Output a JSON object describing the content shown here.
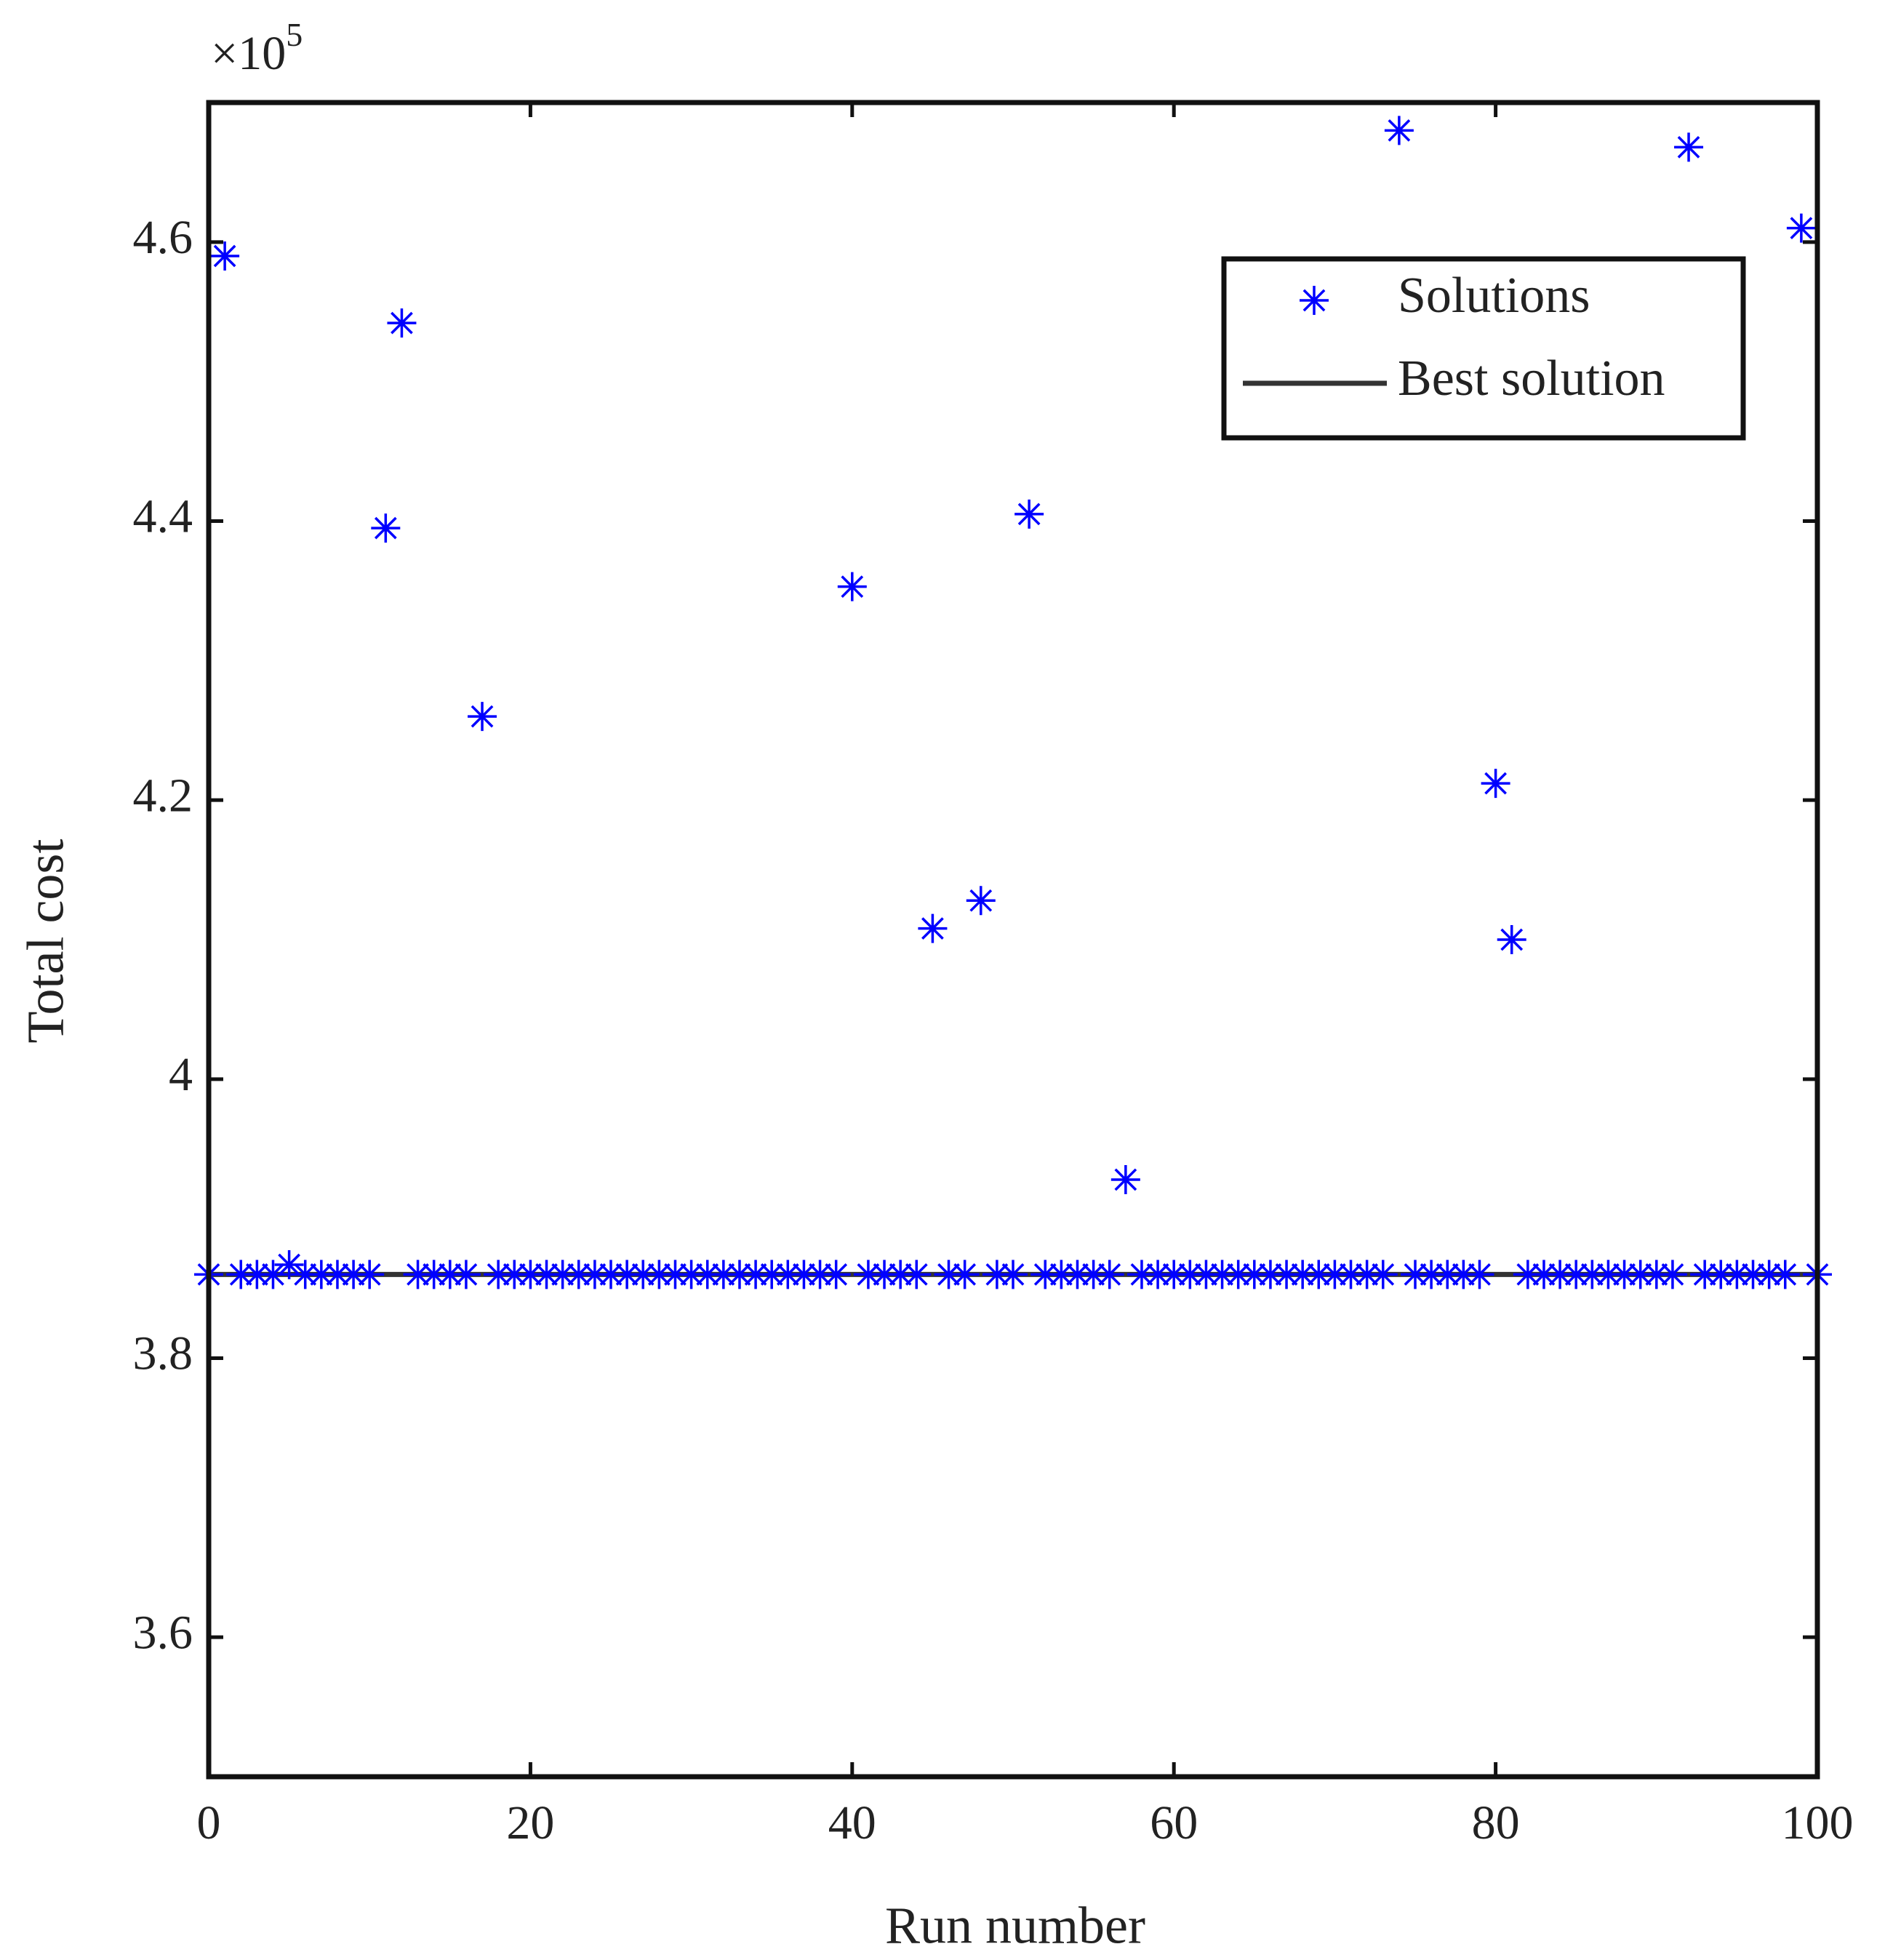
{
  "chart_data": {
    "type": "scatter",
    "x_label": "Run number",
    "y_label": "Total cost",
    "y_multiplier": {
      "base": "×10",
      "exponent": "5"
    },
    "xlim": [
      0,
      100
    ],
    "xticks": [
      0,
      20,
      40,
      60,
      80,
      100
    ],
    "ylim": [
      3.5,
      4.7
    ],
    "yticks": [
      3.6,
      3.8,
      4,
      4.2,
      4.4,
      4.6
    ],
    "grid": false,
    "legend": "upper right",
    "series": [
      {
        "name": "Solutions",
        "color": "#0000ff",
        "x": [
          0,
          1,
          2,
          3,
          4,
          5,
          6,
          7,
          8,
          9,
          10,
          11,
          12,
          13,
          14,
          15,
          16,
          17,
          18,
          19,
          20,
          21,
          22,
          23,
          24,
          25,
          26,
          27,
          28,
          29,
          30,
          31,
          32,
          33,
          34,
          35,
          36,
          37,
          38,
          39,
          40,
          41,
          42,
          43,
          44,
          45,
          46,
          47,
          48,
          49,
          50,
          51,
          52,
          53,
          54,
          55,
          56,
          57,
          58,
          59,
          60,
          61,
          62,
          63,
          64,
          65,
          66,
          67,
          68,
          69,
          70,
          71,
          72,
          73,
          74,
          75,
          76,
          77,
          78,
          79,
          80,
          81,
          82,
          83,
          84,
          85,
          86,
          87,
          88,
          89,
          90,
          91,
          92,
          93,
          94,
          95,
          96,
          97,
          98,
          99,
          100
        ],
        "values": [
          3.86,
          4.59,
          3.86,
          3.86,
          3.86,
          3.867,
          3.86,
          3.86,
          3.86,
          3.86,
          3.86,
          4.395,
          4.542,
          3.86,
          3.86,
          3.86,
          3.86,
          4.26,
          3.86,
          3.86,
          3.86,
          3.86,
          3.86,
          3.86,
          3.86,
          3.86,
          3.86,
          3.86,
          3.86,
          3.86,
          3.86,
          3.86,
          3.86,
          3.86,
          3.86,
          3.86,
          3.86,
          3.86,
          3.86,
          3.86,
          4.353,
          3.86,
          3.86,
          3.86,
          3.86,
          4.108,
          3.86,
          3.86,
          4.128,
          3.86,
          3.86,
          4.405,
          3.86,
          3.86,
          3.86,
          3.86,
          3.86,
          3.928,
          3.86,
          3.86,
          3.86,
          3.86,
          3.86,
          3.86,
          3.86,
          3.86,
          3.86,
          3.86,
          3.86,
          3.86,
          3.86,
          3.86,
          3.86,
          3.86,
          4.68,
          3.86,
          3.86,
          3.86,
          3.86,
          3.86,
          4.212,
          4.1,
          3.86,
          3.86,
          3.86,
          3.86,
          3.86,
          3.86,
          3.86,
          3.86,
          3.86,
          3.86,
          4.668,
          3.86,
          3.86,
          3.86,
          3.86,
          3.86,
          3.86,
          4.61,
          3.86
        ]
      },
      {
        "name": "Best solution",
        "color": "#333333",
        "line_value": 3.86
      }
    ]
  }
}
